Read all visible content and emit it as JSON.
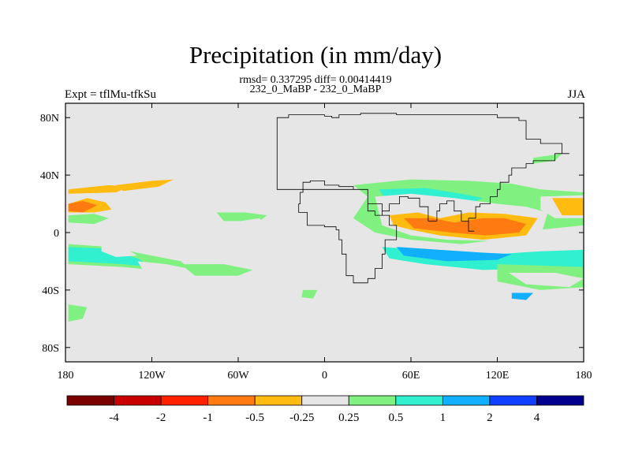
{
  "title": "Precipitation (in mm/day)",
  "stats_line": "rmsd= 0.337295 diff= 0.00414419",
  "cases_line": "232_0_MaBP - 232_0_MaBP",
  "left_label": "Expt = tflMu-tfkSu",
  "right_label": "JJA",
  "map": {
    "lon_range": [
      -180,
      180
    ],
    "lat_range": [
      -90,
      90
    ],
    "x_ticks": [
      {
        "lon": -180,
        "label": "180"
      },
      {
        "lon": -120,
        "label": "120W"
      },
      {
        "lon": -60,
        "label": "60W"
      },
      {
        "lon": 0,
        "label": "0"
      },
      {
        "lon": 60,
        "label": "60E"
      },
      {
        "lon": 120,
        "label": "120E"
      },
      {
        "lon": 180,
        "label": "180"
      }
    ],
    "y_ticks": [
      {
        "lat": 80,
        "label": "80N"
      },
      {
        "lat": 40,
        "label": "40N"
      },
      {
        "lat": 0,
        "label": "0"
      },
      {
        "lat": -40,
        "label": "40S"
      },
      {
        "lat": -80,
        "label": "80S"
      }
    ],
    "background_color": "#e6e6e6"
  },
  "colorbar": {
    "levels": [
      "-4",
      "-2",
      "-1",
      "-0.5",
      "-0.25",
      "0.25",
      "0.5",
      "1",
      "2",
      "4"
    ],
    "colors": [
      "#7a0000",
      "#c80000",
      "#ff2000",
      "#ff7a10",
      "#ffbb10",
      "#e6e6e6",
      "#80f080",
      "#30f0d0",
      "#10b0ff",
      "#1040ff",
      "#00008c"
    ]
  },
  "chart_data": {
    "type": "heatmap",
    "title": "Precipitation (in mm/day)",
    "units": "mm/day",
    "season": "JJA",
    "levels": [
      -4,
      -2,
      -1,
      -0.5,
      -0.25,
      0.25,
      0.5,
      1,
      2,
      4
    ],
    "regions": [
      {
        "level": -0.5,
        "lonlat": [
          [
            -178,
            20
          ],
          [
            -165,
            24
          ],
          [
            -152,
            21
          ],
          [
            -148,
            16
          ],
          [
            -160,
            14
          ],
          [
            -178,
            14
          ]
        ]
      },
      {
        "level": -0.5,
        "lonlat": [
          [
            -178,
            30
          ],
          [
            -150,
            33
          ],
          [
            -135,
            32
          ],
          [
            -145,
            28
          ],
          [
            -178,
            27
          ]
        ]
      },
      {
        "level": -0.5,
        "lonlat": [
          [
            -145,
            33
          ],
          [
            -120,
            36
          ],
          [
            -105,
            37
          ],
          [
            -115,
            32
          ],
          [
            -140,
            29
          ]
        ]
      },
      {
        "level": -1,
        "lonlat": [
          [
            -178,
            20
          ],
          [
            -168,
            22
          ],
          [
            -158,
            19
          ],
          [
            -168,
            14
          ],
          [
            -178,
            15
          ]
        ]
      },
      {
        "level": 0.25,
        "lonlat": [
          [
            -178,
            12
          ],
          [
            -160,
            13
          ],
          [
            -150,
            10
          ],
          [
            -160,
            6
          ],
          [
            -178,
            7
          ]
        ]
      },
      {
        "level": 0.25,
        "lonlat": [
          [
            -178,
            -8
          ],
          [
            -150,
            -10
          ],
          [
            -120,
            -16
          ],
          [
            -100,
            -20
          ],
          [
            -90,
            -28
          ],
          [
            -110,
            -27
          ],
          [
            -140,
            -24
          ],
          [
            -178,
            -22
          ]
        ]
      },
      {
        "level": 0.5,
        "lonlat": [
          [
            -178,
            -10
          ],
          [
            -155,
            -11
          ],
          [
            -130,
            -18
          ],
          [
            -120,
            -24
          ],
          [
            -140,
            -22
          ],
          [
            -178,
            -20
          ]
        ]
      },
      {
        "level": -0.25,
        "lonlat": [
          [
            -155,
            -8
          ],
          [
            -140,
            -10
          ],
          [
            -130,
            -16
          ],
          [
            -145,
            -17
          ],
          [
            -155,
            -13
          ]
        ]
      },
      {
        "level": -0.25,
        "lonlat": [
          [
            -178,
            -28
          ],
          [
            -160,
            -30
          ],
          [
            -140,
            -40
          ],
          [
            -135,
            -46
          ],
          [
            -150,
            -48
          ],
          [
            -178,
            -46
          ]
        ]
      },
      {
        "level": -0.25,
        "lonlat": [
          [
            -130,
            -20
          ],
          [
            -110,
            -22
          ],
          [
            -90,
            -26
          ],
          [
            -80,
            -34
          ],
          [
            -100,
            -32
          ],
          [
            -125,
            -28
          ]
        ]
      },
      {
        "level": 0.25,
        "lonlat": [
          [
            -178,
            -50
          ],
          [
            -165,
            -52
          ],
          [
            -168,
            -60
          ],
          [
            -178,
            -62
          ]
        ]
      },
      {
        "level": 0.25,
        "lonlat": [
          [
            -100,
            -22
          ],
          [
            -70,
            -22
          ],
          [
            -50,
            -26
          ],
          [
            -60,
            -30
          ],
          [
            -90,
            -30
          ]
        ]
      },
      {
        "level": 0.25,
        "lonlat": [
          [
            -75,
            14
          ],
          [
            -55,
            14
          ],
          [
            -40,
            12
          ],
          [
            -45,
            8
          ],
          [
            -70,
            8
          ]
        ]
      },
      {
        "level": -0.25,
        "lonlat": [
          [
            -58,
            8
          ],
          [
            -45,
            10
          ],
          [
            -40,
            2
          ],
          [
            -50,
            -4
          ],
          [
            -58,
            2
          ]
        ]
      },
      {
        "level": 0.25,
        "lonlat": [
          [
            -15,
            -40
          ],
          [
            -5,
            -40
          ],
          [
            -8,
            -46
          ],
          [
            -16,
            -45
          ]
        ]
      },
      {
        "level": 0.25,
        "lonlat": [
          [
            20,
            33
          ],
          [
            60,
            37
          ],
          [
            100,
            36
          ],
          [
            130,
            34
          ],
          [
            150,
            30
          ],
          [
            180,
            28
          ],
          [
            180,
            5
          ],
          [
            150,
            2
          ],
          [
            120,
            -5
          ],
          [
            95,
            -8
          ],
          [
            60,
            -5
          ],
          [
            35,
            0
          ],
          [
            20,
            10
          ],
          [
            30,
            25
          ]
        ]
      },
      {
        "level": 0.5,
        "lonlat": [
          [
            38,
            30
          ],
          [
            70,
            31
          ],
          [
            95,
            27
          ],
          [
            110,
            24
          ],
          [
            95,
            18
          ],
          [
            70,
            16
          ],
          [
            45,
            18
          ]
        ]
      },
      {
        "level": 0.5,
        "lonlat": [
          [
            40,
            -10
          ],
          [
            80,
            -13
          ],
          [
            120,
            -15
          ],
          [
            150,
            -13
          ],
          [
            180,
            -12
          ],
          [
            180,
            -24
          ],
          [
            150,
            -25
          ],
          [
            110,
            -26
          ],
          [
            70,
            -22
          ],
          [
            45,
            -18
          ]
        ]
      },
      {
        "level": 1,
        "lonlat": [
          [
            50,
            -10
          ],
          [
            80,
            -12
          ],
          [
            110,
            -14
          ],
          [
            130,
            -15
          ],
          [
            120,
            -19
          ],
          [
            85,
            -20
          ],
          [
            55,
            -16
          ]
        ]
      },
      {
        "level": 0.25,
        "lonlat": [
          [
            120,
            -22
          ],
          [
            150,
            -23
          ],
          [
            180,
            -24
          ],
          [
            180,
            -38
          ],
          [
            150,
            -40
          ],
          [
            120,
            -34
          ]
        ]
      },
      {
        "level": -0.25,
        "lonlat": [
          [
            35,
            25
          ],
          [
            60,
            27
          ],
          [
            90,
            24
          ],
          [
            120,
            20
          ],
          [
            140,
            18
          ],
          [
            155,
            14
          ],
          [
            150,
            -3
          ],
          [
            120,
            -6
          ],
          [
            85,
            -5
          ],
          [
            60,
            -2
          ],
          [
            40,
            5
          ]
        ]
      },
      {
        "level": -0.5,
        "lonlat": [
          [
            45,
            12
          ],
          [
            65,
            14
          ],
          [
            80,
            10
          ],
          [
            100,
            14
          ],
          [
            125,
            13
          ],
          [
            148,
            10
          ],
          [
            140,
            -2
          ],
          [
            110,
            -5
          ],
          [
            80,
            -2
          ],
          [
            60,
            2
          ],
          [
            48,
            5
          ]
        ]
      },
      {
        "level": -1,
        "lonlat": [
          [
            55,
            10
          ],
          [
            75,
            10
          ],
          [
            90,
            7
          ],
          [
            110,
            10
          ],
          [
            125,
            10
          ],
          [
            140,
            6
          ],
          [
            135,
            0
          ],
          [
            112,
            -2
          ],
          [
            88,
            0
          ],
          [
            62,
            3
          ]
        ]
      },
      {
        "level": -0.25,
        "lonlat": [
          [
            150,
            25
          ],
          [
            180,
            26
          ],
          [
            180,
            10
          ],
          [
            160,
            10
          ],
          [
            150,
            16
          ]
        ]
      },
      {
        "level": -0.5,
        "lonlat": [
          [
            158,
            24
          ],
          [
            180,
            24
          ],
          [
            180,
            12
          ],
          [
            165,
            12
          ]
        ]
      },
      {
        "level": -0.25,
        "lonlat": [
          [
            128,
            -28
          ],
          [
            160,
            -28
          ],
          [
            180,
            -32
          ],
          [
            170,
            -38
          ],
          [
            140,
            -36
          ]
        ]
      },
      {
        "level": -0.25,
        "lonlat": [
          [
            115,
            -50
          ],
          [
            125,
            -52
          ],
          [
            120,
            -58
          ],
          [
            112,
            -56
          ]
        ]
      },
      {
        "level": 1,
        "lonlat": [
          [
            130,
            -42
          ],
          [
            145,
            -42
          ],
          [
            140,
            -47
          ],
          [
            130,
            -46
          ]
        ]
      },
      {
        "level": 0.25,
        "lonlat": [
          [
            145,
            52
          ],
          [
            165,
            55
          ],
          [
            160,
            50
          ],
          [
            145,
            48
          ]
        ]
      }
    ]
  },
  "coastline_lonlat": [
    [
      -33,
      80
    ],
    [
      -25,
      82
    ],
    [
      -10,
      82
    ],
    [
      0,
      81
    ],
    [
      5,
      80
    ],
    [
      10,
      82
    ],
    [
      25,
      83
    ],
    [
      50,
      82
    ],
    [
      80,
      82
    ],
    [
      100,
      82
    ],
    [
      120,
      80
    ],
    [
      135,
      78
    ],
    [
      140,
      78
    ],
    [
      140,
      65
    ],
    [
      150,
      62
    ],
    [
      165,
      60
    ],
    [
      165,
      55
    ],
    [
      170,
      55
    ],
    [
      160,
      50
    ],
    [
      145,
      48
    ],
    [
      140,
      45
    ],
    [
      130,
      40
    ],
    [
      128,
      35
    ],
    [
      122,
      30
    ],
    [
      120,
      25
    ],
    [
      115,
      20
    ],
    [
      108,
      18
    ],
    [
      105,
      10
    ],
    [
      100,
      5
    ],
    [
      100,
      1
    ],
    [
      104,
      1
    ],
    [
      100,
      8
    ],
    [
      95,
      15
    ],
    [
      90,
      22
    ],
    [
      85,
      20
    ],
    [
      80,
      15
    ],
    [
      78,
      8
    ],
    [
      72,
      18
    ],
    [
      66,
      24
    ],
    [
      58,
      25
    ],
    [
      52,
      20
    ],
    [
      45,
      15
    ],
    [
      40,
      12
    ],
    [
      35,
      15
    ],
    [
      30,
      30
    ],
    [
      20,
      32
    ],
    [
      10,
      33
    ],
    [
      0,
      36
    ],
    [
      -10,
      35
    ],
    [
      -15,
      28
    ],
    [
      -17,
      20
    ],
    [
      -18,
      14
    ],
    [
      -12,
      5
    ],
    [
      0,
      4
    ],
    [
      8,
      2
    ],
    [
      10,
      -5
    ],
    [
      12,
      -15
    ],
    [
      15,
      -30
    ],
    [
      20,
      -35
    ],
    [
      30,
      -32
    ],
    [
      35,
      -25
    ],
    [
      40,
      -15
    ],
    [
      42,
      -5
    ],
    [
      50,
      5
    ],
    [
      45,
      12
    ],
    [
      40,
      20
    ],
    [
      30,
      30
    ]
  ]
}
